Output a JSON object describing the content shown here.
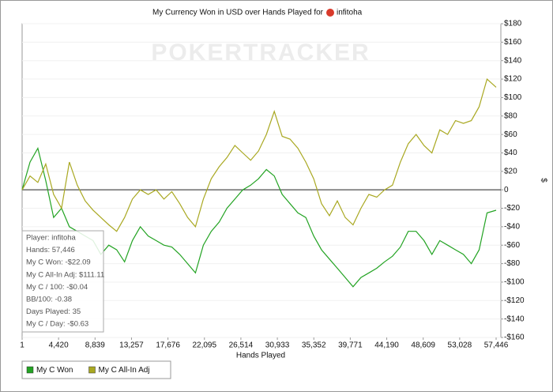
{
  "chart_data": {
    "type": "line",
    "title": "My Currency Won in USD over Hands Played for",
    "title_player": "infitoha",
    "watermark": "POKERTRACKER",
    "x_label": "Hands Played",
    "y_label": "$",
    "x": [
      1,
      955,
      1910,
      2865,
      3820,
      4775,
      5730,
      6685,
      7640,
      8595,
      9550,
      10505,
      11460,
      12415,
      13370,
      14325,
      15280,
      16235,
      17190,
      18145,
      19100,
      20055,
      21010,
      21965,
      22920,
      23875,
      24830,
      25785,
      26740,
      27695,
      28650,
      29605,
      30560,
      31515,
      32470,
      33425,
      34380,
      35335,
      36290,
      37245,
      38200,
      39155,
      40110,
      41065,
      42020,
      42975,
      43930,
      44885,
      45840,
      46795,
      47750,
      48705,
      49660,
      50615,
      51570,
      52525,
      53480,
      54435,
      55390,
      56345,
      57446
    ],
    "series": [
      {
        "name": "My C Won",
        "color": "#23a323",
        "values": [
          0,
          30,
          45,
          10,
          -30,
          -20,
          -40,
          -45,
          -50,
          -55,
          -70,
          -60,
          -65,
          -78,
          -55,
          -40,
          -50,
          -55,
          -60,
          -62,
          -70,
          -80,
          -90,
          -60,
          -45,
          -35,
          -20,
          -10,
          0,
          5,
          12,
          22,
          15,
          -5,
          -15,
          -25,
          -30,
          -50,
          -65,
          -75,
          -85,
          -95,
          -105,
          -95,
          -90,
          -85,
          -78,
          -72,
          -62,
          -45,
          -45,
          -55,
          -70,
          -55,
          -60,
          -65,
          -70,
          -80,
          -65,
          -25,
          -22.09
        ]
      },
      {
        "name": "My C All-In Adj",
        "color": "#a9a821",
        "values": [
          0,
          15,
          8,
          28,
          -5,
          -20,
          30,
          5,
          -12,
          -22,
          -30,
          -38,
          -45,
          -30,
          -10,
          0,
          -5,
          0,
          -10,
          -2,
          -15,
          -30,
          -40,
          -10,
          12,
          25,
          35,
          48,
          40,
          32,
          42,
          60,
          85,
          58,
          55,
          45,
          30,
          12,
          -15,
          -28,
          -12,
          -30,
          -38,
          -20,
          -5,
          -8,
          0,
          5,
          30,
          50,
          60,
          48,
          40,
          65,
          60,
          75,
          72,
          75,
          90,
          120,
          111.11
        ]
      }
    ],
    "xlim": [
      1,
      57446
    ],
    "xticks": [
      1,
      {
        "value": 4420,
        "label": "4,420"
      },
      {
        "value": 8839,
        "label": "8,839"
      },
      {
        "value": 13257,
        "label": "13,257"
      },
      {
        "value": 17676,
        "label": "17,676"
      },
      {
        "value": 22095,
        "label": "22,095"
      },
      {
        "value": 26514,
        "label": "26,514"
      },
      {
        "value": 30933,
        "label": "30,933"
      },
      {
        "value": 35352,
        "label": "35,352"
      },
      {
        "value": 39771,
        "label": "39,771"
      },
      {
        "value": 44190,
        "label": "44,190"
      },
      {
        "value": 48609,
        "label": "48,609"
      },
      {
        "value": 53028,
        "label": "53,028"
      },
      {
        "value": 57446,
        "label": "57,446"
      }
    ],
    "ylim": [
      -160,
      180
    ],
    "yticks": [
      {
        "value": 180,
        "label": "$180"
      },
      {
        "value": 160,
        "label": "$160"
      },
      {
        "value": 140,
        "label": "$140"
      },
      {
        "value": 120,
        "label": "$120"
      },
      {
        "value": 100,
        "label": "$100"
      },
      {
        "value": 80,
        "label": "$80"
      },
      {
        "value": 60,
        "label": "$60"
      },
      {
        "value": 40,
        "label": "$40"
      },
      {
        "value": 20,
        "label": "$20"
      },
      0,
      {
        "value": -20,
        "label": "-$20"
      },
      {
        "value": -40,
        "label": "-$40"
      },
      {
        "value": -60,
        "label": "-$60"
      },
      {
        "value": -80,
        "label": "-$80"
      },
      {
        "value": -100,
        "label": "-$100"
      },
      {
        "value": -120,
        "label": "-$120"
      },
      {
        "value": -140,
        "label": "-$140"
      },
      {
        "value": -160,
        "label": "-$160"
      }
    ],
    "grid": true,
    "legend_position": "bottom-left",
    "tooltip": [
      "Player: infitoha",
      "Hands: 57,446",
      "My C Won: -$22.09",
      "My C All-In Adj: $111.11",
      "My C / 100: -$0.04",
      "BB/100: -0.38",
      "Days Played: 35",
      "My C / Day: -$0.63"
    ]
  }
}
